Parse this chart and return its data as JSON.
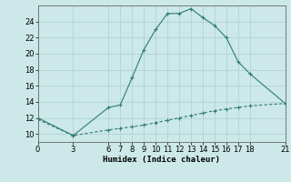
{
  "x_upper": [
    0,
    3,
    6,
    7,
    8,
    9,
    10,
    11,
    12,
    13,
    14,
    15,
    16,
    17,
    18,
    21
  ],
  "y_upper": [
    12.0,
    9.8,
    13.3,
    13.6,
    17.0,
    20.5,
    23.0,
    25.0,
    25.0,
    25.6,
    24.5,
    23.5,
    22.0,
    19.0,
    17.5,
    13.8
  ],
  "x_lower": [
    0,
    3,
    6,
    7,
    8,
    9,
    10,
    11,
    12,
    13,
    14,
    15,
    16,
    17,
    18,
    21
  ],
  "y_lower": [
    11.8,
    9.8,
    10.5,
    10.7,
    10.9,
    11.1,
    11.4,
    11.7,
    12.0,
    12.3,
    12.6,
    12.9,
    13.1,
    13.3,
    13.5,
    13.8
  ],
  "line_color": "#2e7d6e",
  "bg_color": "#cce8e8",
  "grid_color": "#aad0d0",
  "xlabel": "Humidex (Indice chaleur)",
  "xticks": [
    0,
    3,
    6,
    7,
    8,
    9,
    10,
    11,
    12,
    13,
    14,
    15,
    16,
    17,
    18,
    21
  ],
  "yticks": [
    10,
    12,
    14,
    16,
    18,
    20,
    22,
    24
  ],
  "ylim": [
    9.0,
    26.0
  ],
  "xlim": [
    0,
    21
  ],
  "xlabel_fontsize": 6.5,
  "tick_fontsize": 6.0,
  "linewidth": 0.8,
  "marker": "+",
  "marker_size": 3.5,
  "marker_edge_width": 0.8
}
